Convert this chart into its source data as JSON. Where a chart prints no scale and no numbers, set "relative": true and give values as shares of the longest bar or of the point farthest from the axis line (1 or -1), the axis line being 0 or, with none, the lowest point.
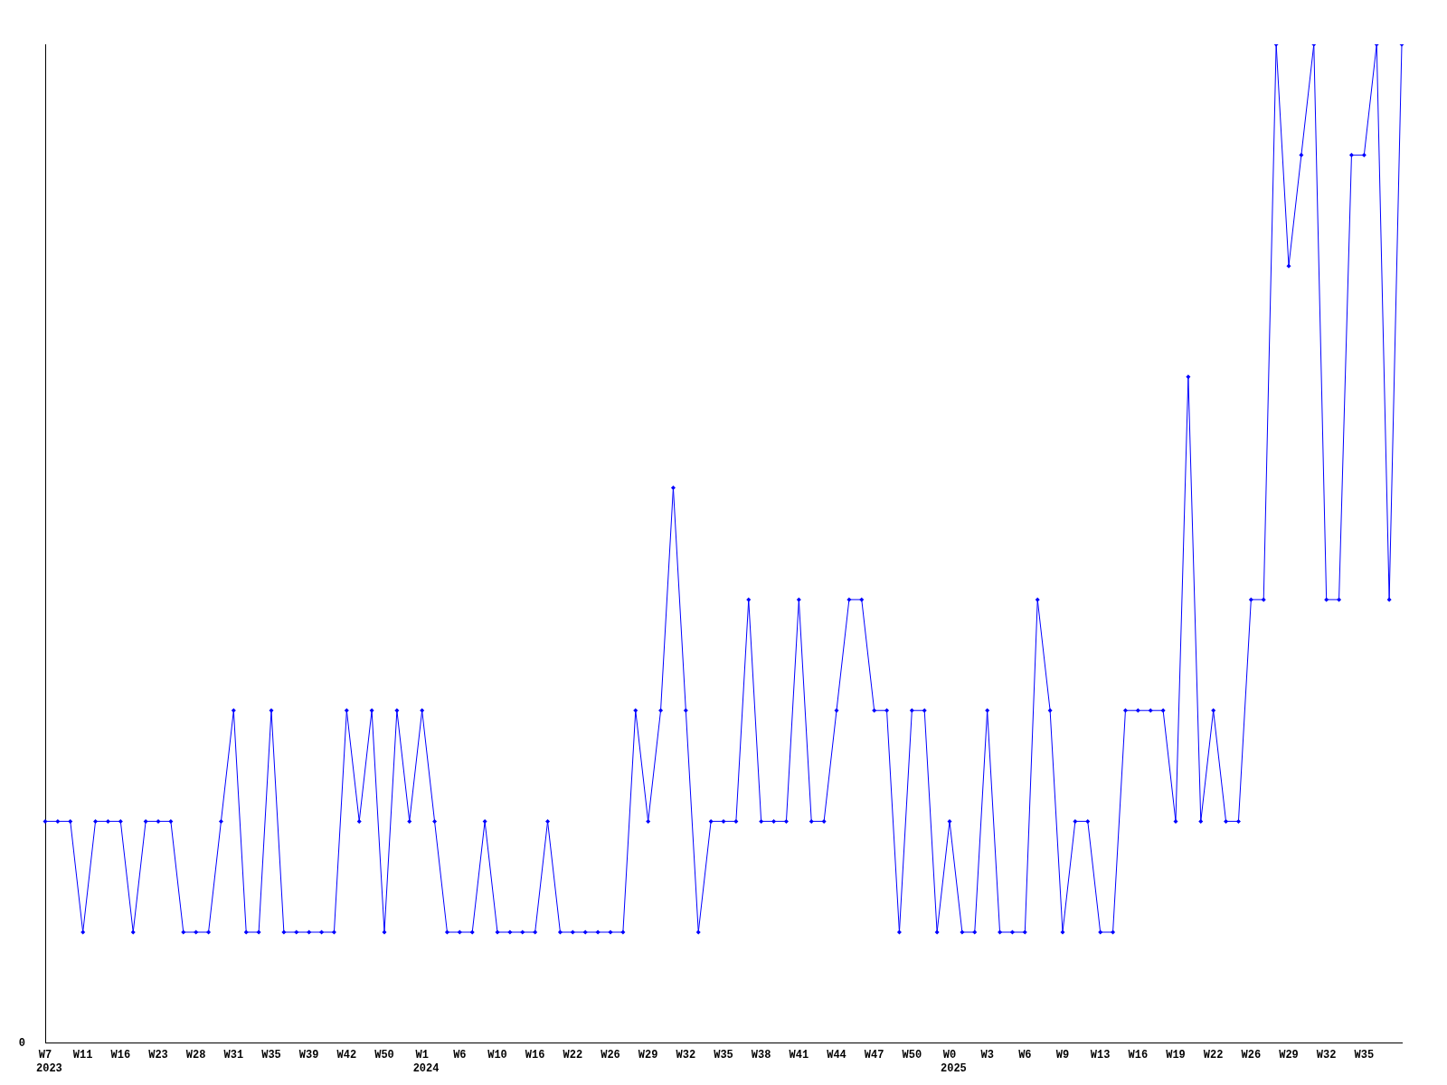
{
  "chart_data": {
    "type": "line",
    "relative": true,
    "color": "#0000ff",
    "marker": "diamond",
    "line_style": "solid",
    "grid": false,
    "legend": false,
    "categories": [
      "W7",
      null,
      null,
      "W11",
      null,
      null,
      "W16",
      null,
      null,
      "W23",
      null,
      null,
      "W28",
      null,
      null,
      "W31",
      null,
      null,
      "W35",
      null,
      null,
      "W39",
      null,
      null,
      "W42",
      null,
      null,
      "W50",
      null,
      null,
      "W1",
      null,
      null,
      "W6",
      null,
      null,
      "W10",
      null,
      null,
      "W16",
      null,
      null,
      "W22",
      null,
      null,
      "W26",
      null,
      null,
      "W29",
      null,
      null,
      "W32",
      null,
      null,
      "W35",
      null,
      null,
      "W38",
      null,
      null,
      "W41",
      null,
      null,
      "W44",
      null,
      null,
      "W47",
      null,
      null,
      "W50",
      null,
      null,
      "W0",
      null,
      null,
      "W3",
      null,
      null,
      "W6",
      null,
      null,
      "W9",
      null,
      null,
      "W13",
      null,
      null,
      "W16",
      null,
      null,
      "W19",
      null,
      null,
      "W22",
      null,
      null,
      "W26",
      null,
      null,
      "W29",
      null,
      null,
      "W32",
      null,
      null,
      "W35",
      null,
      null,
      null
    ],
    "values": [
      0.222,
      0.222,
      0.222,
      0.111,
      0.222,
      0.222,
      0.222,
      0.111,
      0.222,
      0.222,
      0.222,
      0.111,
      0.111,
      0.111,
      0.222,
      0.333,
      0.111,
      0.111,
      0.333,
      0.111,
      0.111,
      0.111,
      0.111,
      0.111,
      0.333,
      0.222,
      0.333,
      0.111,
      0.333,
      0.222,
      0.333,
      0.222,
      0.111,
      0.111,
      0.111,
      0.222,
      0.111,
      0.111,
      0.111,
      0.111,
      0.222,
      0.111,
      0.111,
      0.111,
      0.111,
      0.111,
      0.111,
      0.333,
      0.222,
      0.333,
      0.556,
      0.333,
      0.111,
      0.222,
      0.222,
      0.222,
      0.444,
      0.222,
      0.222,
      0.222,
      0.444,
      0.222,
      0.222,
      0.333,
      0.444,
      0.444,
      0.333,
      0.333,
      0.111,
      0.333,
      0.333,
      0.111,
      0.222,
      0.111,
      0.111,
      0.333,
      0.111,
      0.111,
      0.111,
      0.444,
      0.333,
      0.111,
      0.222,
      0.222,
      0.111,
      0.111,
      0.333,
      0.333,
      0.333,
      0.333,
      0.222,
      0.667,
      0.222,
      0.333,
      0.222,
      0.222,
      0.444,
      0.444,
      1,
      0.778,
      0.889,
      1,
      0.444,
      0.444,
      0.889,
      0.889,
      1,
      0.444,
      1
    ],
    "annotations": [
      "0",
      "2023",
      "2024",
      "2025"
    ]
  }
}
